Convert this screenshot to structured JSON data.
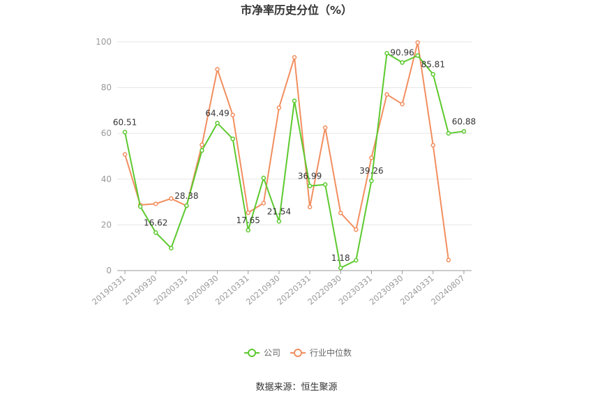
{
  "chart_data": {
    "type": "line",
    "title": "市净率历史分位（%）",
    "x": [
      "20190331",
      "20190630",
      "20190930",
      "20191231",
      "20200331",
      "20200630",
      "20200930",
      "20201231",
      "20210331",
      "20210630",
      "20210930",
      "20211231",
      "20220331",
      "20220630",
      "20220930",
      "20221231",
      "20230331",
      "20230630",
      "20230930",
      "20231231",
      "20240331",
      "20240630",
      "20240807"
    ],
    "x_tick_labels": [
      "20190331",
      "20190930",
      "20200331",
      "20200930",
      "20210331",
      "20210930",
      "20220331",
      "20220930",
      "20230331",
      "20230930",
      "20240331",
      "20240807"
    ],
    "ylim": [
      0,
      100
    ],
    "y_ticks": [
      "0",
      "20",
      "40",
      "60",
      "80",
      "100"
    ],
    "grid": true,
    "legend_position": "bottom-center",
    "series": [
      {
        "name": "公司",
        "color": "#5cc92e",
        "values": [
          60.51,
          28,
          16.62,
          9.8,
          28.38,
          52.5,
          64.49,
          57.6,
          17.65,
          40.5,
          21.54,
          74.2,
          36.99,
          37.6,
          1.18,
          4.5,
          39.26,
          95,
          90.96,
          94,
          85.81,
          60,
          60.88
        ],
        "labels": {
          "0": "60.51",
          "2": "16.62",
          "4": "28.38",
          "6": "64.49",
          "8": "17.65",
          "10": "21.54",
          "12": "36.99",
          "14": "1.18",
          "16": "39.26",
          "18": "90.96",
          "20": "85.81",
          "22": "60.88"
        }
      },
      {
        "name": "行业中位数",
        "color": "#f28e5f",
        "values": [
          50.8,
          28.7,
          29.2,
          31.5,
          28.3,
          55,
          88,
          68,
          25.3,
          29.5,
          71.2,
          93.2,
          27.8,
          62.5,
          25.2,
          17.9,
          49.3,
          77,
          72.8,
          99.7,
          54.8,
          4.6,
          null
        ]
      }
    ]
  },
  "source_text": "数据来源：恒生聚源"
}
